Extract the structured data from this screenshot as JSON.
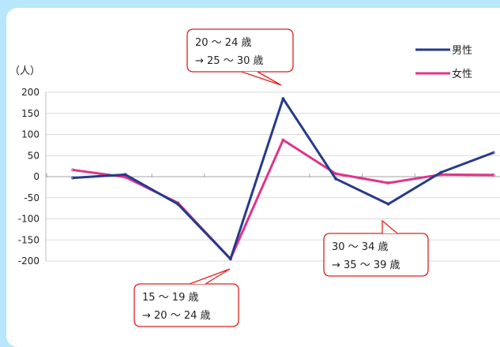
{
  "chart_data": {
    "type": "line",
    "x": [
      1,
      2,
      3,
      4,
      5,
      6,
      7,
      8,
      9,
      10
    ],
    "ylabel": "（人）",
    "ylim": [
      -200,
      200
    ],
    "yticks": [
      200,
      150,
      100,
      50,
      0,
      -50,
      -100,
      -150,
      -200
    ],
    "ytick_labels": [
      "200",
      "150",
      "100",
      "50",
      "0",
      "-50",
      "-100",
      "-150",
      "-200"
    ],
    "grid": true,
    "legend_position": "top-right",
    "series": [
      {
        "name": "男性",
        "color": "#263b8a",
        "values": [
          -3,
          5,
          -65,
          -195,
          185,
          -5,
          -65,
          10,
          57,
          null
        ]
      },
      {
        "name": "女性",
        "color": "#e0338c",
        "values": [
          16,
          -1,
          -62,
          -195,
          87,
          7,
          -15,
          5,
          4,
          null
        ]
      }
    ],
    "annotations": [
      {
        "line1": "20 ～ 24 歳",
        "line2": "→ 25 ～ 30 歳"
      },
      {
        "line1": "30 ～ 34 歳",
        "line2": "→ 35 ～ 39 歳"
      },
      {
        "line1": "15 ～ 19 歳",
        "line2": "→ 20 ～ 24 歳"
      }
    ]
  }
}
